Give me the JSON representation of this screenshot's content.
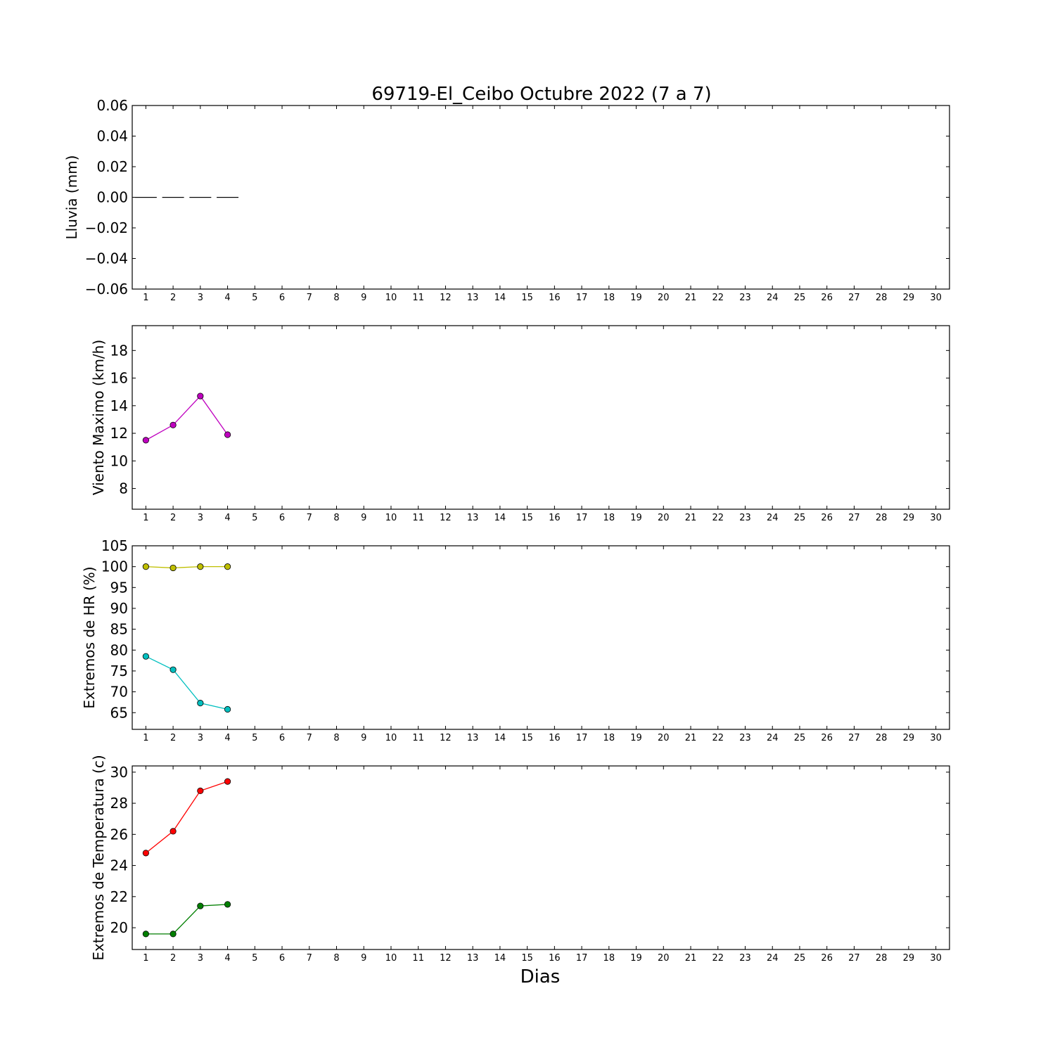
{
  "title": "69719-El_Ceibo Octubre 2022  (7 a 7)",
  "xlabel": "Dias",
  "chart_data": [
    {
      "type": "bar",
      "ylabel": "Lluvia (mm)",
      "ylim": [
        -0.06,
        0.06
      ],
      "yticks": [
        "0.06",
        "0.04",
        "0.02",
        "0.00",
        "−0.02",
        "−0.04",
        "−0.06"
      ],
      "ytick_values": [
        0.06,
        0.04,
        0.02,
        0.0,
        -0.02,
        -0.04,
        -0.06
      ],
      "xlim": [
        0.5,
        30.5
      ],
      "xticks": [
        "1",
        "2",
        "3",
        "4",
        "5",
        "6",
        "7",
        "8",
        "9",
        "10",
        "11",
        "12",
        "13",
        "14",
        "15",
        "16",
        "17",
        "18",
        "19",
        "20",
        "21",
        "22",
        "23",
        "24",
        "25",
        "26",
        "27",
        "28",
        "29",
        "30"
      ],
      "series": [
        {
          "x": [
            1,
            2,
            3,
            4
          ],
          "values": [
            0.0,
            0.0,
            0.0,
            0.0
          ],
          "color": "#000000"
        }
      ]
    },
    {
      "type": "line",
      "ylabel": "Viento Maximo (km/h)",
      "ylim": [
        6.5,
        19.8
      ],
      "yticks": [
        "8",
        "10",
        "12",
        "14",
        "16",
        "18"
      ],
      "ytick_values": [
        8,
        10,
        12,
        14,
        16,
        18
      ],
      "xlim": [
        0.5,
        30.5
      ],
      "xticks": [
        "1",
        "2",
        "3",
        "4",
        "5",
        "6",
        "7",
        "8",
        "9",
        "10",
        "11",
        "12",
        "13",
        "14",
        "15",
        "16",
        "17",
        "18",
        "19",
        "20",
        "21",
        "22",
        "23",
        "24",
        "25",
        "26",
        "27",
        "28",
        "29",
        "30"
      ],
      "series": [
        {
          "x": [
            1,
            2,
            3,
            4
          ],
          "values": [
            11.5,
            12.6,
            14.7,
            11.9
          ],
          "color": "#bf00bf"
        }
      ]
    },
    {
      "type": "line",
      "ylabel": "Extremos de HR (%)",
      "ylim": [
        61,
        105
      ],
      "yticks": [
        "105",
        "100",
        "95",
        "90",
        "85",
        "80",
        "75",
        "70",
        "65"
      ],
      "ytick_values": [
        105,
        100,
        95,
        90,
        85,
        80,
        75,
        70,
        65
      ],
      "xlim": [
        0.5,
        30.5
      ],
      "xticks": [
        "1",
        "2",
        "3",
        "4",
        "5",
        "6",
        "7",
        "8",
        "9",
        "10",
        "11",
        "12",
        "13",
        "14",
        "15",
        "16",
        "17",
        "18",
        "19",
        "20",
        "21",
        "22",
        "23",
        "24",
        "25",
        "26",
        "27",
        "28",
        "29",
        "30"
      ],
      "series": [
        {
          "x": [
            1,
            2,
            3,
            4
          ],
          "values": [
            100,
            99.7,
            100,
            100
          ],
          "color": "#bfbf00"
        },
        {
          "x": [
            1,
            2,
            3,
            4
          ],
          "values": [
            78.5,
            75.3,
            67.3,
            65.8
          ],
          "color": "#00bfbf"
        }
      ]
    },
    {
      "type": "line",
      "ylabel": "Extremos de Temperatura (c)",
      "ylim": [
        18.6,
        30.4
      ],
      "yticks": [
        "30",
        "28",
        "26",
        "24",
        "22",
        "20"
      ],
      "ytick_values": [
        30,
        28,
        26,
        24,
        22,
        20
      ],
      "xlim": [
        0.5,
        30.5
      ],
      "xticks": [
        "1",
        "2",
        "3",
        "4",
        "5",
        "6",
        "7",
        "8",
        "9",
        "10",
        "11",
        "12",
        "13",
        "14",
        "15",
        "16",
        "17",
        "18",
        "19",
        "20",
        "21",
        "22",
        "23",
        "24",
        "25",
        "26",
        "27",
        "28",
        "29",
        "30"
      ],
      "series": [
        {
          "x": [
            1,
            2,
            3,
            4
          ],
          "values": [
            24.8,
            26.2,
            28.8,
            29.4
          ],
          "color": "#ff0000"
        },
        {
          "x": [
            1,
            2,
            3,
            4
          ],
          "values": [
            19.6,
            19.6,
            21.4,
            21.5
          ],
          "color": "#007f00"
        }
      ]
    }
  ]
}
